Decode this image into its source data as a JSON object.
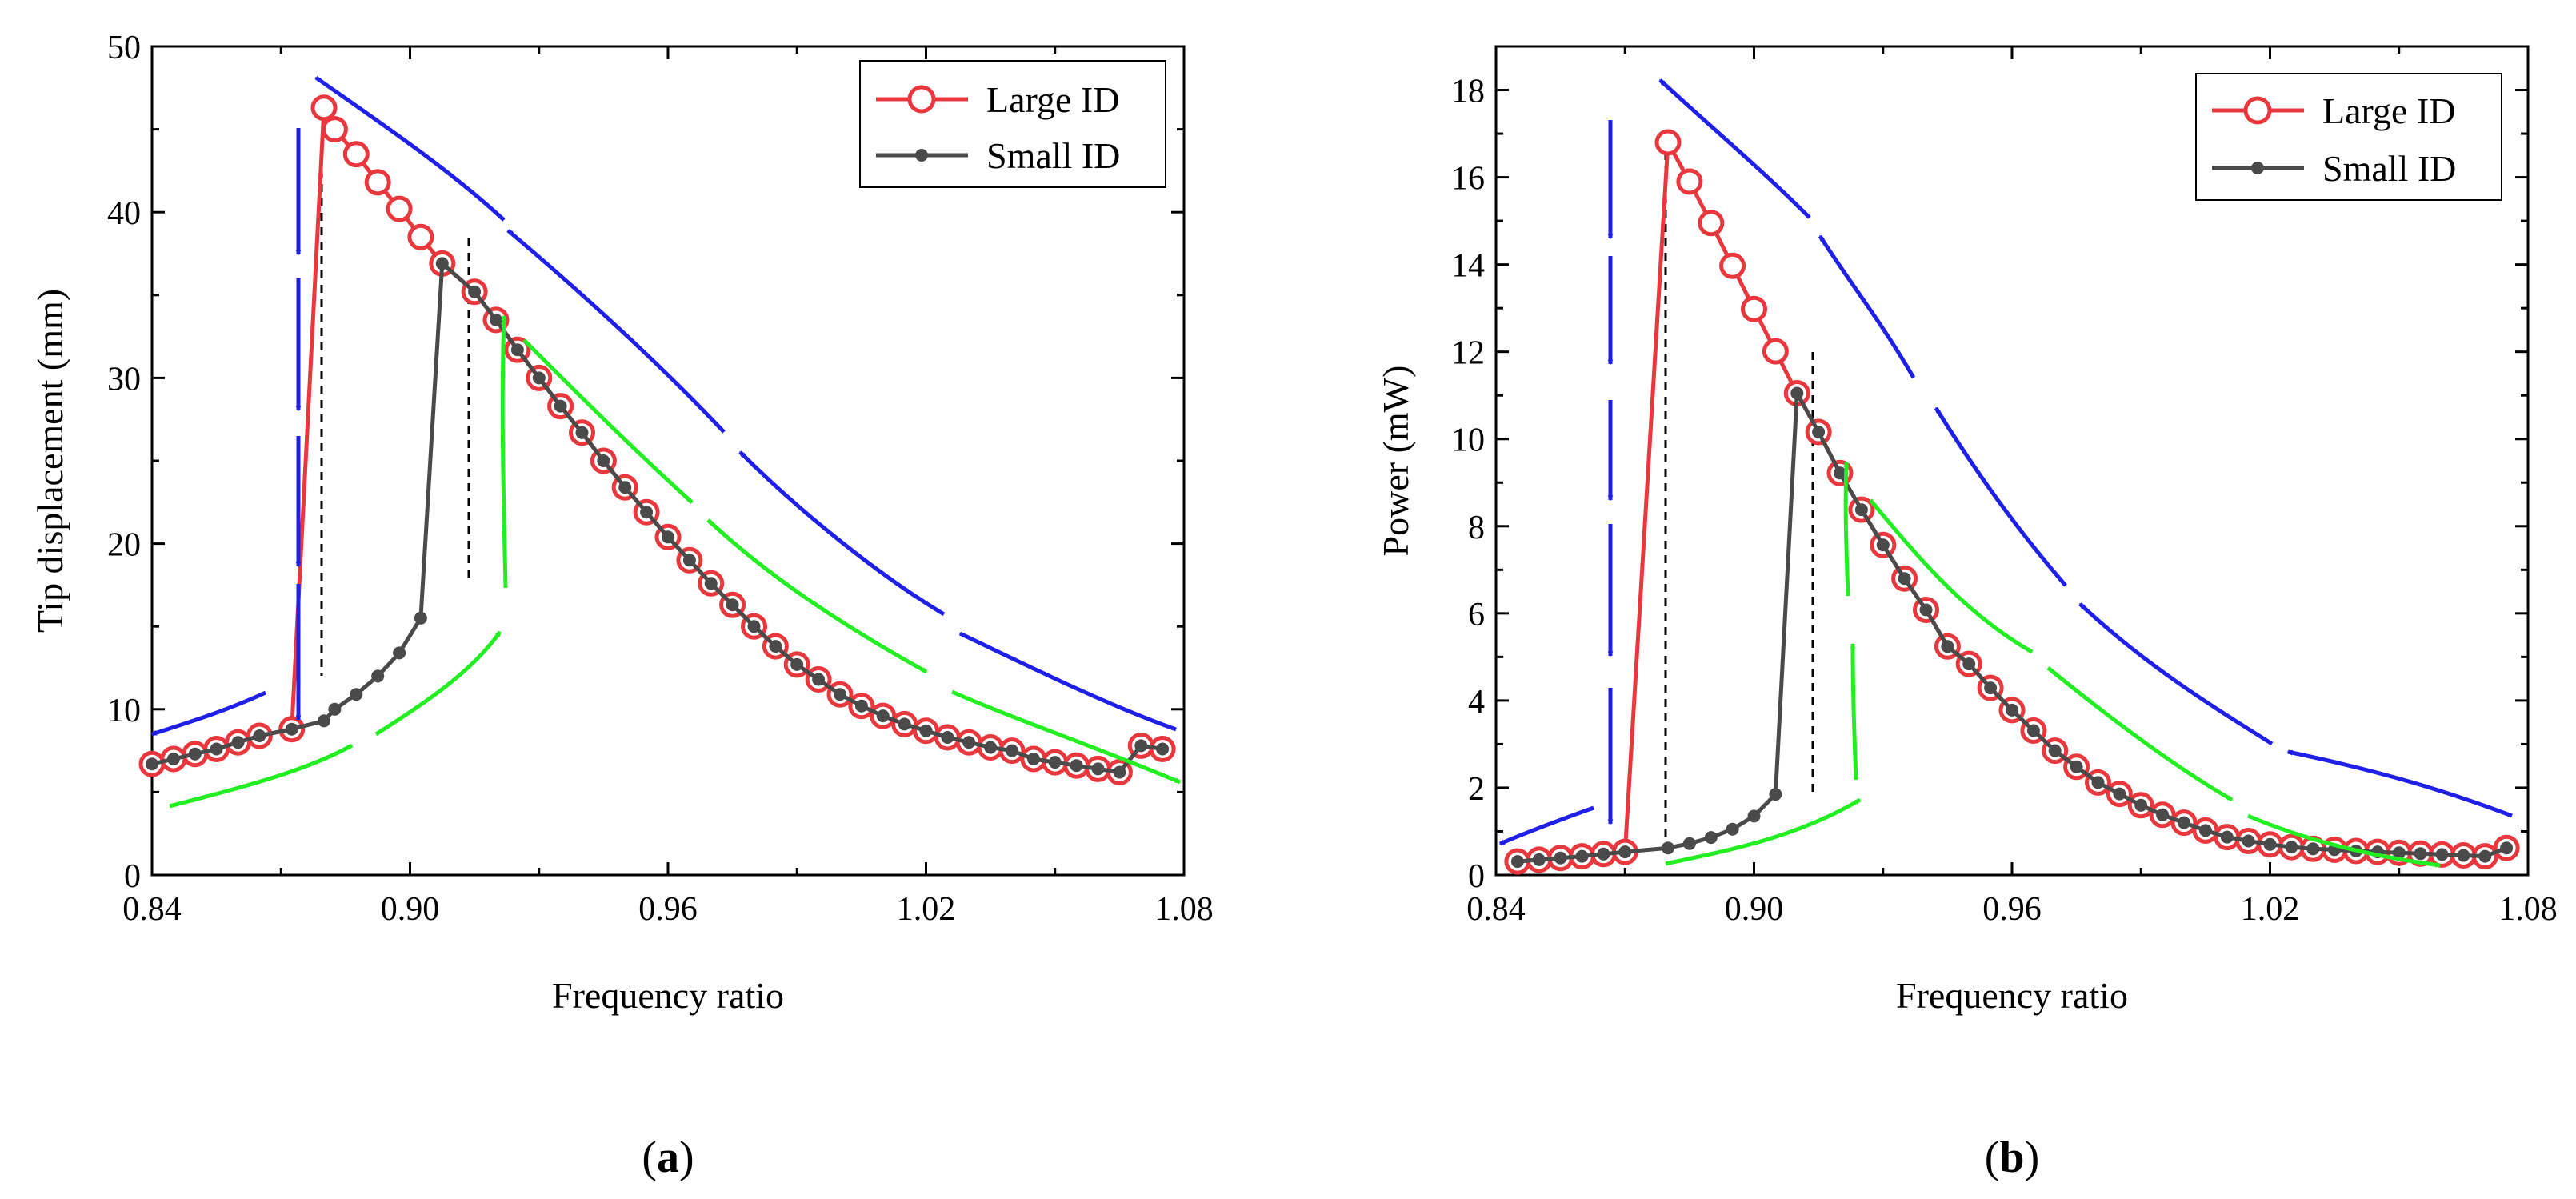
{
  "colors": {
    "large_id": "#e8383d",
    "small_id": "#4a4a4a",
    "down_sweep_arrow": "#1f1fe8",
    "up_sweep_arrow": "#22ee22",
    "jump_line": "#000000"
  },
  "chart_data": [
    {
      "type": "line",
      "panel_label_paren_open": "(",
      "panel_label": "a",
      "panel_label_paren_close": ")",
      "xlabel": "Frequency ratio",
      "ylabel": "Tip displacement (mm)",
      "xlim": [
        0.84,
        1.08
      ],
      "ylim": [
        0,
        50
      ],
      "xticks": [
        "0.84",
        "0.90",
        "0.96",
        "1.02",
        "1.08"
      ],
      "yticks": [
        "0",
        "10",
        "20",
        "30",
        "40",
        "50"
      ],
      "legend_position": "top-right",
      "series": [
        {
          "name": "Large ID",
          "marker": "open-circle",
          "x": [
            0.84,
            0.845,
            0.85,
            0.855,
            0.86,
            0.865,
            0.8725,
            0.88,
            0.8825,
            0.8875,
            0.8925,
            0.8975,
            0.9025,
            0.9075,
            0.915,
            0.92,
            0.925,
            0.93,
            0.935,
            0.94,
            0.945,
            0.95,
            0.955,
            0.96,
            0.965,
            0.97,
            0.975,
            0.98,
            0.985,
            0.99,
            0.995,
            1.0,
            1.005,
            1.01,
            1.015,
            1.02,
            1.025,
            1.03,
            1.035,
            1.04,
            1.045,
            1.05,
            1.055,
            1.06,
            1.065,
            1.07,
            1.075
          ],
          "y": [
            6.7,
            7.0,
            7.3,
            7.6,
            8.0,
            8.4,
            8.8,
            46.3,
            45.0,
            43.5,
            41.8,
            40.2,
            38.5,
            36.9,
            35.2,
            33.5,
            31.7,
            30.0,
            28.3,
            26.7,
            25.0,
            23.4,
            21.9,
            20.4,
            19.0,
            17.6,
            16.3,
            15.0,
            13.8,
            12.7,
            11.8,
            10.9,
            10.2,
            9.6,
            9.1,
            8.7,
            8.3,
            8.0,
            7.7,
            7.5,
            7.0,
            6.8,
            6.6,
            6.4,
            6.2,
            7.8,
            7.6
          ]
        },
        {
          "name": "Small ID",
          "marker": "filled-dot",
          "x": [
            0.84,
            0.845,
            0.85,
            0.855,
            0.86,
            0.865,
            0.8725,
            0.88,
            0.8825,
            0.8875,
            0.8925,
            0.8975,
            0.9025,
            0.9075,
            0.915,
            0.92,
            0.925,
            0.93,
            0.935,
            0.94,
            0.945,
            0.95,
            0.955,
            0.96,
            0.965,
            0.97,
            0.975,
            0.98,
            0.985,
            0.99,
            0.995,
            1.0,
            1.005,
            1.01,
            1.015,
            1.02,
            1.025,
            1.03,
            1.035,
            1.04,
            1.045,
            1.05,
            1.055,
            1.06,
            1.065,
            1.07,
            1.075
          ],
          "y": [
            6.7,
            7.0,
            7.3,
            7.6,
            8.0,
            8.4,
            8.8,
            9.3,
            10.0,
            10.9,
            12.0,
            13.4,
            15.5,
            36.9,
            35.2,
            33.5,
            31.7,
            30.0,
            28.3,
            26.7,
            25.0,
            23.4,
            21.9,
            20.4,
            19.0,
            17.6,
            16.3,
            15.0,
            13.8,
            12.7,
            11.8,
            10.9,
            10.2,
            9.6,
            9.1,
            8.7,
            8.3,
            8.0,
            7.7,
            7.5,
            7.0,
            6.8,
            6.6,
            6.4,
            6.2,
            7.8,
            7.6
          ]
        }
      ]
    },
    {
      "type": "line",
      "panel_label_paren_open": "(",
      "panel_label": "b",
      "panel_label_paren_close": ")",
      "xlabel": "Frequency ratio",
      "ylabel": "Power (mW)",
      "xlim": [
        0.84,
        1.08
      ],
      "ylim": [
        0,
        19
      ],
      "xticks": [
        "0.84",
        "0.90",
        "0.96",
        "1.02",
        "1.08"
      ],
      "yticks": [
        "0",
        "2",
        "4",
        "6",
        "8",
        "10",
        "12",
        "14",
        "16",
        "18"
      ],
      "legend_position": "top-right",
      "series": [
        {
          "name": "Large ID",
          "marker": "open-circle",
          "x": [
            0.845,
            0.85,
            0.855,
            0.86,
            0.865,
            0.87,
            0.88,
            0.885,
            0.89,
            0.895,
            0.9,
            0.905,
            0.91,
            0.915,
            0.92,
            0.925,
            0.93,
            0.935,
            0.94,
            0.945,
            0.95,
            0.955,
            0.96,
            0.965,
            0.97,
            0.975,
            0.98,
            0.985,
            0.99,
            0.995,
            1.0,
            1.005,
            1.01,
            1.015,
            1.02,
            1.025,
            1.03,
            1.035,
            1.04,
            1.045,
            1.05,
            1.055,
            1.06,
            1.065,
            1.07,
            1.075
          ],
          "y": [
            0.31,
            0.35,
            0.39,
            0.43,
            0.48,
            0.53,
            16.8,
            15.9,
            14.95,
            13.97,
            12.98,
            12.01,
            11.05,
            10.16,
            9.22,
            8.38,
            7.57,
            6.8,
            6.08,
            5.24,
            4.84,
            4.29,
            3.78,
            3.31,
            2.85,
            2.48,
            2.12,
            1.86,
            1.6,
            1.38,
            1.2,
            1.02,
            0.87,
            0.78,
            0.7,
            0.64,
            0.6,
            0.58,
            0.55,
            0.53,
            0.51,
            0.49,
            0.47,
            0.45,
            0.43,
            0.62
          ]
        },
        {
          "name": "Small ID",
          "marker": "filled-dot",
          "x": [
            0.845,
            0.85,
            0.855,
            0.86,
            0.865,
            0.87,
            0.88,
            0.885,
            0.89,
            0.895,
            0.9,
            0.905,
            0.91,
            0.915,
            0.92,
            0.925,
            0.93,
            0.935,
            0.94,
            0.945,
            0.95,
            0.955,
            0.96,
            0.965,
            0.97,
            0.975,
            0.98,
            0.985,
            0.99,
            0.995,
            1.0,
            1.005,
            1.01,
            1.015,
            1.02,
            1.025,
            1.03,
            1.035,
            1.04,
            1.045,
            1.05,
            1.055,
            1.06,
            1.065,
            1.07,
            1.075
          ],
          "y": [
            0.31,
            0.35,
            0.39,
            0.43,
            0.48,
            0.53,
            0.62,
            0.72,
            0.86,
            1.05,
            1.35,
            1.85,
            11.05,
            10.16,
            9.22,
            8.38,
            7.57,
            6.8,
            6.08,
            5.24,
            4.84,
            4.29,
            3.78,
            3.31,
            2.85,
            2.48,
            2.12,
            1.86,
            1.6,
            1.38,
            1.2,
            1.02,
            0.87,
            0.78,
            0.7,
            0.64,
            0.6,
            0.58,
            0.55,
            0.53,
            0.51,
            0.49,
            0.47,
            0.45,
            0.43,
            0.62
          ]
        }
      ]
    }
  ]
}
